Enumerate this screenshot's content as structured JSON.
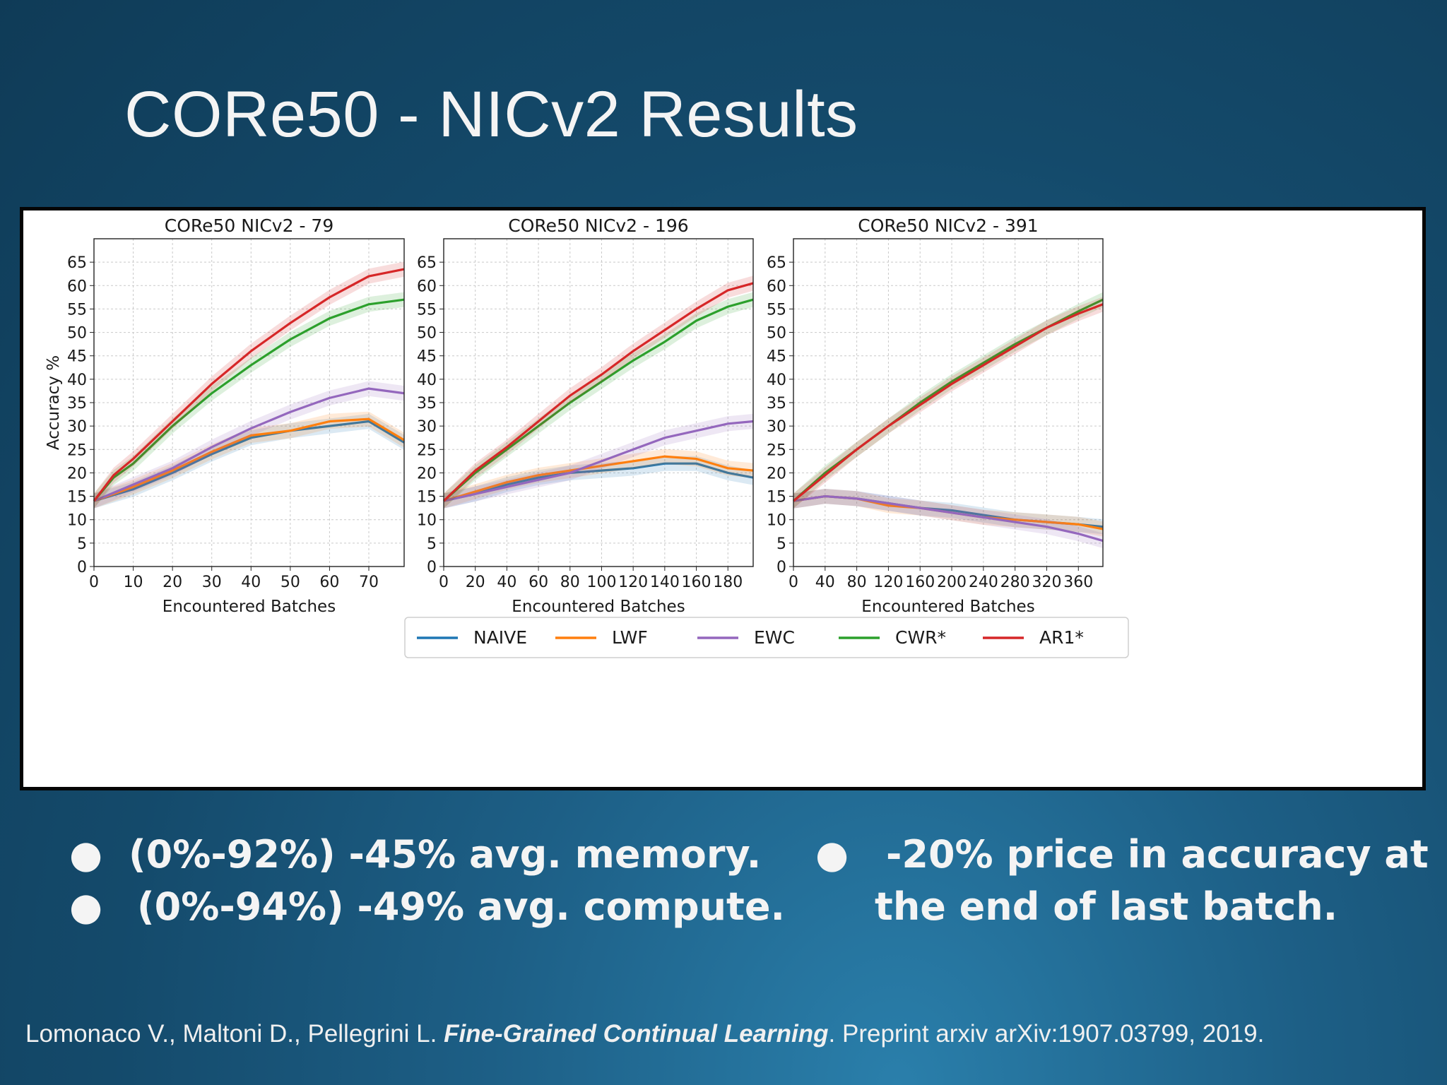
{
  "slide": {
    "title": "CORe50 - NICv2 Results",
    "bullets_left": [
      "(0%-92%) -45% avg. memory.",
      "(0%-94%) -49% avg. compute."
    ],
    "bullets_right": [
      "-20% price in  accuracy at",
      "the end of last batch."
    ],
    "bullet_symbol": "●",
    "citation": {
      "authors": "Lomonaco V., Maltoni D., Pellegrini L. ",
      "title": "Fine-Grained Continual Learning",
      "rest": ". Preprint arxiv arXiv:1907.03799, 2019."
    }
  },
  "legend": [
    {
      "name": "NAIVE",
      "color": "#1f77b4"
    },
    {
      "name": "LWF",
      "color": "#ff7f0e"
    },
    {
      "name": "EWC",
      "color": "#9467bd"
    },
    {
      "name": "CWR*",
      "color": "#2ca02c"
    },
    {
      "name": "AR1*",
      "color": "#d62728"
    }
  ],
  "chart_data": [
    {
      "type": "line",
      "title": "CORe50 NICv2 - 79",
      "xlabel": "Encountered Batches",
      "ylabel": "Accuracy %",
      "xlim": [
        0,
        79
      ],
      "ylim": [
        0,
        70
      ],
      "xticks": [
        0,
        10,
        20,
        30,
        40,
        50,
        60,
        70
      ],
      "yticks": [
        0,
        5,
        10,
        15,
        20,
        25,
        30,
        35,
        40,
        45,
        50,
        55,
        60,
        65
      ],
      "grid": true,
      "series": [
        {
          "name": "NAIVE",
          "x": [
            0,
            10,
            20,
            30,
            40,
            50,
            60,
            70,
            79
          ],
          "y": [
            14,
            16.5,
            20,
            24,
            27.5,
            29,
            30,
            31,
            26.5
          ]
        },
        {
          "name": "LWF",
          "x": [
            0,
            10,
            20,
            30,
            40,
            50,
            60,
            70,
            79
          ],
          "y": [
            14,
            17,
            20.5,
            24.5,
            28,
            29,
            31,
            31.5,
            27
          ]
        },
        {
          "name": "EWC",
          "x": [
            0,
            10,
            20,
            30,
            40,
            50,
            60,
            70,
            79
          ],
          "y": [
            14,
            17.5,
            21,
            25.5,
            29.5,
            33,
            36,
            38,
            37
          ]
        },
        {
          "name": "CWR*",
          "x": [
            0,
            5,
            10,
            20,
            30,
            40,
            50,
            60,
            70,
            79
          ],
          "y": [
            14,
            19,
            22,
            30,
            37,
            43,
            48.5,
            53,
            56,
            57
          ]
        },
        {
          "name": "AR1*",
          "x": [
            0,
            5,
            10,
            20,
            30,
            40,
            50,
            60,
            70,
            79
          ],
          "y": [
            14,
            19.5,
            23,
            31,
            39,
            46,
            52,
            57.5,
            62,
            63.5
          ]
        }
      ]
    },
    {
      "type": "line",
      "title": "CORe50 NICv2 - 196",
      "xlabel": "Encountered Batches",
      "ylabel": "",
      "xlim": [
        0,
        196
      ],
      "ylim": [
        0,
        70
      ],
      "xticks": [
        0,
        20,
        40,
        60,
        80,
        100,
        120,
        140,
        160,
        180
      ],
      "yticks": [
        0,
        5,
        10,
        15,
        20,
        25,
        30,
        35,
        40,
        45,
        50,
        55,
        60,
        65
      ],
      "grid": true,
      "series": [
        {
          "name": "NAIVE",
          "x": [
            0,
            20,
            40,
            60,
            80,
            100,
            120,
            140,
            160,
            180,
            196
          ],
          "y": [
            14,
            15.5,
            17.5,
            19,
            20,
            20.5,
            21,
            22,
            22,
            20,
            19
          ]
        },
        {
          "name": "LWF",
          "x": [
            0,
            20,
            40,
            60,
            80,
            100,
            120,
            140,
            160,
            180,
            196
          ],
          "y": [
            14,
            16,
            18,
            19.5,
            20.5,
            21.5,
            22.5,
            23.5,
            23,
            21,
            20.5
          ]
        },
        {
          "name": "EWC",
          "x": [
            0,
            20,
            40,
            60,
            80,
            100,
            120,
            140,
            160,
            180,
            196
          ],
          "y": [
            14,
            15.5,
            17,
            18.5,
            20,
            22.5,
            25,
            27.5,
            29,
            30.5,
            31
          ]
        },
        {
          "name": "CWR*",
          "x": [
            0,
            20,
            40,
            60,
            80,
            100,
            120,
            140,
            160,
            180,
            196
          ],
          "y": [
            14,
            20,
            25,
            30,
            35,
            39.5,
            44,
            48,
            52.5,
            55.5,
            57
          ]
        },
        {
          "name": "AR1*",
          "x": [
            0,
            20,
            40,
            60,
            80,
            100,
            120,
            140,
            160,
            180,
            196
          ],
          "y": [
            14,
            20.5,
            25.5,
            31,
            36.5,
            41,
            46,
            50.5,
            55,
            59,
            60.5
          ]
        }
      ]
    },
    {
      "type": "line",
      "title": "CORe50 NICv2 - 391",
      "xlabel": "Encountered Batches",
      "ylabel": "",
      "xlim": [
        0,
        391
      ],
      "ylim": [
        0,
        70
      ],
      "xticks": [
        0,
        40,
        80,
        120,
        160,
        200,
        240,
        280,
        320,
        360
      ],
      "yticks": [
        0,
        5,
        10,
        15,
        20,
        25,
        30,
        35,
        40,
        45,
        50,
        55,
        60,
        65
      ],
      "grid": true,
      "series": [
        {
          "name": "NAIVE",
          "x": [
            0,
            40,
            80,
            120,
            160,
            200,
            240,
            280,
            320,
            360,
            391
          ],
          "y": [
            14,
            15,
            14.5,
            13.5,
            12.5,
            12,
            11,
            10,
            9.5,
            9,
            8.5
          ]
        },
        {
          "name": "LWF",
          "x": [
            0,
            40,
            80,
            120,
            160,
            200,
            240,
            280,
            320,
            360,
            391
          ],
          "y": [
            14,
            15,
            14.5,
            13,
            12.5,
            11.5,
            10.5,
            10,
            9.5,
            9,
            8
          ]
        },
        {
          "name": "EWC",
          "x": [
            0,
            40,
            80,
            120,
            160,
            200,
            240,
            280,
            320,
            360,
            391
          ],
          "y": [
            14,
            15,
            14.5,
            13.5,
            12.5,
            11.5,
            10.5,
            9.5,
            8.5,
            7,
            5.5
          ]
        },
        {
          "name": "CWR*",
          "x": [
            0,
            40,
            80,
            120,
            160,
            200,
            240,
            280,
            320,
            360,
            391
          ],
          "y": [
            14,
            20,
            25,
            30,
            35,
            39.5,
            43.5,
            47.5,
            51,
            54.5,
            57
          ]
        },
        {
          "name": "AR1*",
          "x": [
            0,
            40,
            80,
            120,
            160,
            200,
            240,
            280,
            320,
            360,
            391
          ],
          "y": [
            14,
            19.5,
            25,
            30,
            34.5,
            39,
            43,
            47,
            51,
            54,
            56
          ]
        }
      ]
    }
  ]
}
